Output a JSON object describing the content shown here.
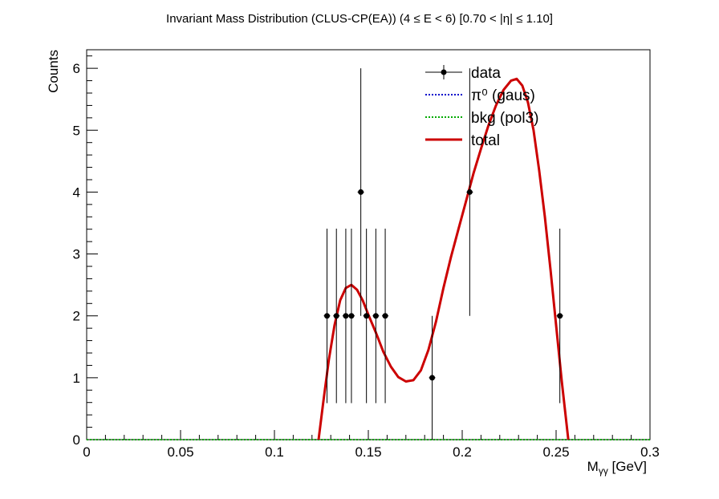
{
  "chart_data": {
    "type": "scatter",
    "title": "Invariant Mass Distribution (CLUS-CP(EA))   (4 ≤ E < 6)   [0.70 < |η| ≤ 1.10]",
    "xlabel": "Mγγ  [GeV]",
    "ylabel": "Counts",
    "xlim": [
      0,
      0.3
    ],
    "ylim": [
      0,
      6.3
    ],
    "x_ticks": [
      "0",
      "0.05",
      "0.1",
      "0.15",
      "0.2",
      "0.25",
      "0.3"
    ],
    "y_ticks": [
      "0",
      "1",
      "2",
      "3",
      "4",
      "5",
      "6"
    ],
    "legend_position": "top-right",
    "series": [
      {
        "name": "data",
        "color": "#000000",
        "points": [
          {
            "x": 0.128,
            "y": 2,
            "err_low": 1.41,
            "err_high": 1.41
          },
          {
            "x": 0.133,
            "y": 2,
            "err_low": 1.41,
            "err_high": 1.41
          },
          {
            "x": 0.138,
            "y": 2,
            "err_low": 1.41,
            "err_high": 1.41
          },
          {
            "x": 0.141,
            "y": 2,
            "err_low": 1.41,
            "err_high": 1.41
          },
          {
            "x": 0.146,
            "y": 4,
            "err_low": 2.0,
            "err_high": 2.0
          },
          {
            "x": 0.149,
            "y": 2,
            "err_low": 1.41,
            "err_high": 1.41
          },
          {
            "x": 0.154,
            "y": 2,
            "err_low": 1.41,
            "err_high": 1.41
          },
          {
            "x": 0.159,
            "y": 2,
            "err_low": 1.41,
            "err_high": 1.41
          },
          {
            "x": 0.184,
            "y": 1,
            "err_low": 1.0,
            "err_high": 1.0
          },
          {
            "x": 0.204,
            "y": 4,
            "err_low": 2.0,
            "err_high": 2.0
          },
          {
            "x": 0.252,
            "y": 2,
            "err_low": 1.41,
            "err_high": 1.41
          }
        ]
      },
      {
        "name": "π⁰ (gaus)",
        "color": "#0000cc",
        "style": "dotted",
        "x": [
          0,
          0.3
        ],
        "y": [
          0,
          0
        ]
      },
      {
        "name": "bkg (pol3)",
        "color": "#00aa00",
        "style": "dotted",
        "x": [
          0,
          0.3
        ],
        "y": [
          0,
          0
        ]
      },
      {
        "name": "total",
        "color": "#cc0000",
        "style": "solid",
        "x": [
          0.1235,
          0.126,
          0.129,
          0.132,
          0.135,
          0.138,
          0.141,
          0.144,
          0.147,
          0.15,
          0.154,
          0.158,
          0.162,
          0.166,
          0.17,
          0.174,
          0.178,
          0.182,
          0.186,
          0.19,
          0.194,
          0.198,
          0.202,
          0.206,
          0.21,
          0.214,
          0.218,
          0.222,
          0.226,
          0.229,
          0.232,
          0.235,
          0.238,
          0.241,
          0.244,
          0.247,
          0.25,
          0.253,
          0.2565
        ],
        "y": [
          0.0,
          0.6,
          1.3,
          1.85,
          2.25,
          2.45,
          2.5,
          2.42,
          2.25,
          2.02,
          1.73,
          1.42,
          1.18,
          1.01,
          0.94,
          0.96,
          1.12,
          1.45,
          1.9,
          2.45,
          2.95,
          3.4,
          3.85,
          4.3,
          4.7,
          5.08,
          5.4,
          5.65,
          5.8,
          5.83,
          5.72,
          5.45,
          5.0,
          4.35,
          3.6,
          2.75,
          1.85,
          0.95,
          0.0
        ]
      }
    ]
  }
}
